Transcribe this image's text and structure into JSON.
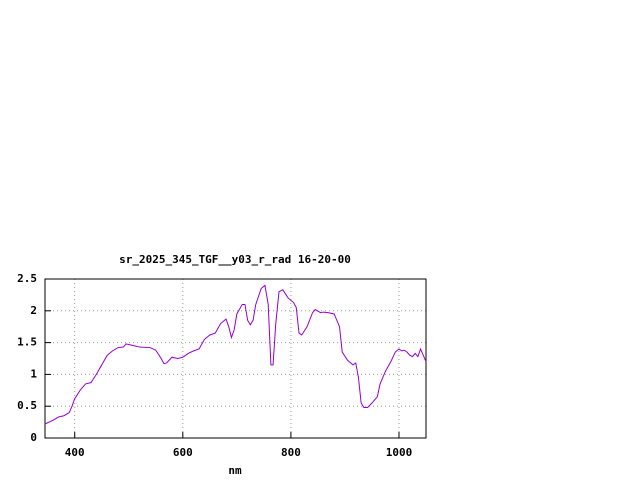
{
  "chart_data": {
    "type": "line",
    "title": "sr_2025_345_TGF__y03_r_rad 16-20-00",
    "x_label": "nm",
    "x": [
      345,
      360,
      370,
      380,
      390,
      395,
      400,
      410,
      420,
      430,
      440,
      450,
      460,
      470,
      480,
      490,
      495,
      500,
      510,
      520,
      540,
      550,
      560,
      565,
      570,
      580,
      590,
      600,
      610,
      620,
      630,
      640,
      650,
      660,
      670,
      680,
      685,
      690,
      695,
      700,
      710,
      715,
      720,
      725,
      730,
      735,
      745,
      752,
      758,
      763,
      767,
      772,
      778,
      785,
      795,
      805,
      810,
      815,
      820,
      830,
      840,
      845,
      855,
      860,
      870,
      880,
      890,
      895,
      905,
      915,
      920,
      925,
      930,
      935,
      942,
      950,
      960,
      965,
      975,
      985,
      993,
      1000,
      1005,
      1010,
      1015,
      1020,
      1025,
      1030,
      1035,
      1040,
      1045,
      1050
    ],
    "series": [
      {
        "color": "#9400d3",
        "values": [
          0.22,
          0.28,
          0.33,
          0.35,
          0.4,
          0.5,
          0.62,
          0.75,
          0.85,
          0.87,
          1.0,
          1.15,
          1.3,
          1.37,
          1.42,
          1.43,
          1.48,
          1.47,
          1.45,
          1.43,
          1.42,
          1.38,
          1.25,
          1.17,
          1.18,
          1.27,
          1.25,
          1.27,
          1.33,
          1.37,
          1.4,
          1.55,
          1.62,
          1.65,
          1.8,
          1.87,
          1.75,
          1.58,
          1.7,
          1.95,
          2.1,
          2.1,
          1.85,
          1.78,
          1.85,
          2.1,
          2.35,
          2.4,
          2.1,
          1.15,
          1.15,
          1.8,
          2.3,
          2.33,
          2.2,
          2.13,
          2.05,
          1.65,
          1.62,
          1.75,
          1.97,
          2.02,
          1.97,
          1.98,
          1.97,
          1.95,
          1.75,
          1.35,
          1.22,
          1.15,
          1.18,
          0.95,
          0.55,
          0.48,
          0.48,
          0.55,
          0.65,
          0.85,
          1.05,
          1.2,
          1.35,
          1.4,
          1.37,
          1.38,
          1.35,
          1.3,
          1.28,
          1.33,
          1.28,
          1.4,
          1.3,
          1.2
        ]
      }
    ],
    "xlim": [
      345,
      1050
    ],
    "ylim": [
      0,
      2.5
    ],
    "xticks": [
      400,
      600,
      800,
      1000
    ],
    "yticks": [
      0,
      0.5,
      1,
      1.5,
      2,
      2.5
    ],
    "grid": true
  }
}
